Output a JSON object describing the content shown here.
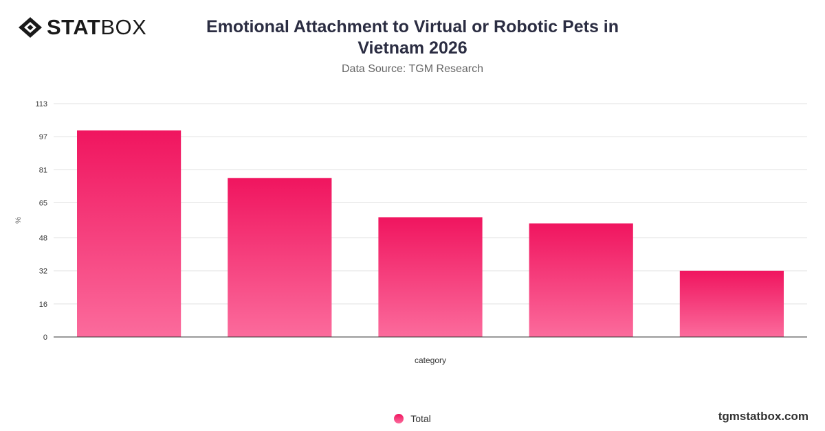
{
  "brand": {
    "logo_strong": "STAT",
    "logo_light": "BOX",
    "icon": "diamond-logo-icon",
    "footer_url": "tgmstatbox.com"
  },
  "colors": {
    "bar_top": "#f0155f",
    "bar_bottom": "#fb6b9c",
    "grid": "#e0e0e0",
    "axis": "#333333"
  },
  "chart_data": {
    "type": "bar",
    "title": "Emotional Attachment to Virtual or Robotic Pets in Vietnam 2026",
    "subtitle": "Data Source: TGM Research",
    "xlabel": "category",
    "ylabel": "%",
    "ylim": [
      0,
      113
    ],
    "yticks": [
      0,
      16,
      32,
      48,
      65,
      81,
      97,
      113
    ],
    "categories": [
      "",
      "",
      "",
      "",
      ""
    ],
    "series": [
      {
        "name": "Total",
        "values": [
          100,
          77,
          58,
          55,
          32
        ]
      }
    ],
    "grid": true,
    "legend": "bottom-center"
  }
}
